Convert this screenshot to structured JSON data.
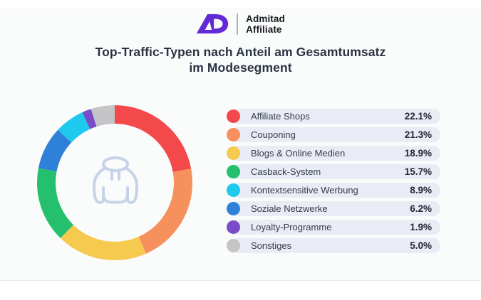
{
  "header": {
    "logo_monogram": "AD",
    "logo_line1": "Admitad",
    "logo_line2": "Affiliate"
  },
  "title": {
    "line1": "Top-Traffic-Typen nach Anteil am Gesamtumsatz",
    "line2": "im Modesegment"
  },
  "theme": {
    "logo_purple": "#6429d6",
    "title_color": "#2b3343",
    "legend_stripe": "#eaecf5",
    "background": "#fafbfb",
    "hoodie_icon_color": "#c7d3e8"
  },
  "chart_data": {
    "type": "donut",
    "title": "Top-Traffic-Typen nach Anteil am Gesamtumsatz im Modesegment",
    "unit": "%",
    "start_angle_deg": 0,
    "direction": "clockwise",
    "inner_radius_ratio": 0.76,
    "center_icon": "hoodie-icon",
    "legend_position": "right",
    "segments": [
      {
        "label": "Affiliate Shops",
        "value": 22.1,
        "display": "22.1%",
        "legend_color": "#f4494b",
        "arc_color": "#f4494b"
      },
      {
        "label": "Couponing",
        "value": 21.3,
        "display": "21.3%",
        "legend_color": "#f6915e",
        "arc_color": "#f6915e"
      },
      {
        "label": "Blogs & Online Medien",
        "value": 18.9,
        "display": "18.9%",
        "legend_color": "#f5ca4e",
        "arc_color": "#f5ca4e"
      },
      {
        "label": "Casback-System",
        "value": 15.7,
        "display": "15.7%",
        "legend_color": "#25c06d",
        "arc_color": "#25c06d"
      },
      {
        "label": "Kontextsensitive Werbung",
        "value": 8.9,
        "display": "8.9%",
        "legend_color": "#1fc9ee",
        "arc_color": "#2f80d8"
      },
      {
        "label": "Soziale Netzwerke",
        "value": 6.2,
        "display": "6.2%",
        "legend_color": "#2f80d8",
        "arc_color": "#1fc9ee"
      },
      {
        "label": "Loyalty-Programme",
        "value": 1.9,
        "display": "1.9%",
        "legend_color": "#7a4dc8",
        "arc_color": "#7a4dc8"
      },
      {
        "label": "Sonstiges",
        "value": 5.0,
        "display": "5.0%",
        "legend_color": "#c5c4c7",
        "arc_color": "#c5c4c7"
      }
    ]
  }
}
